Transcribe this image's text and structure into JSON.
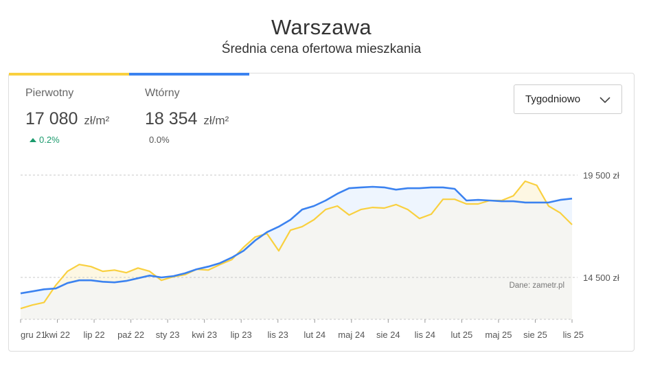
{
  "header": {
    "title": "Warszawa",
    "subtitle": "Średnia cena ofertowa mieszkania"
  },
  "stats": [
    {
      "label": "Pierwotny",
      "value": "17 080",
      "unit": "zł/m²",
      "change": "0.2%",
      "trend": "up"
    },
    {
      "label": "Wtórny",
      "value": "18 354",
      "unit": "zł/m²",
      "change": "0.0%",
      "trend": "flat"
    }
  ],
  "period_select": {
    "selected": "Tygodniowo"
  },
  "colors": {
    "primary": "#f9d03f",
    "secondary": "#3b82f0",
    "up": "#1a9a6c"
  },
  "chart_data": {
    "type": "line",
    "title": "Warszawa",
    "subtitle": "Średnia cena ofertowa mieszkania",
    "source": "Dane: zametr.pl",
    "x_tick_labels": [
      "gru 21",
      "kwi 22",
      "lip 22",
      "paź 22",
      "sty 23",
      "kwi 23",
      "lip 23",
      "lis 23",
      "lut 24",
      "maj 24",
      "sie 24",
      "lis 24",
      "lut 25",
      "maj 25",
      "sie 25",
      "lis 25"
    ],
    "y_ticks": [
      {
        "value": 19500,
        "label": "19 500 zł"
      },
      {
        "value": 14500,
        "label": "14 500 zł"
      }
    ],
    "ylim": [
      12450,
      19500
    ],
    "grid": true,
    "series": [
      {
        "name": "Pierwotny",
        "color": "#f9d03f",
        "values": [
          12980,
          13150,
          13280,
          14120,
          14800,
          15130,
          15030,
          14800,
          14860,
          14730,
          14960,
          14800,
          14360,
          14530,
          14630,
          14900,
          14860,
          15130,
          15370,
          15970,
          16480,
          16640,
          15800,
          16810,
          16980,
          17320,
          17820,
          17990,
          17550,
          17820,
          17920,
          17890,
          18060,
          17820,
          17380,
          17590,
          18320,
          18320,
          18090,
          18090,
          18260,
          18260,
          18490,
          19200,
          19000,
          17990,
          17650,
          17080
        ]
      },
      {
        "name": "Wtórny",
        "color": "#3b82f0",
        "values": [
          13720,
          13820,
          13920,
          13960,
          14225,
          14360,
          14360,
          14290,
          14260,
          14330,
          14460,
          14590,
          14500,
          14560,
          14700,
          14900,
          15030,
          15200,
          15470,
          15800,
          16310,
          16710,
          16980,
          17320,
          17820,
          17990,
          18260,
          18590,
          18860,
          18900,
          18930,
          18900,
          18790,
          18860,
          18860,
          18900,
          18900,
          18830,
          18260,
          18290,
          18260,
          18220,
          18220,
          18160,
          18160,
          18160,
          18290,
          18354
        ]
      }
    ]
  }
}
